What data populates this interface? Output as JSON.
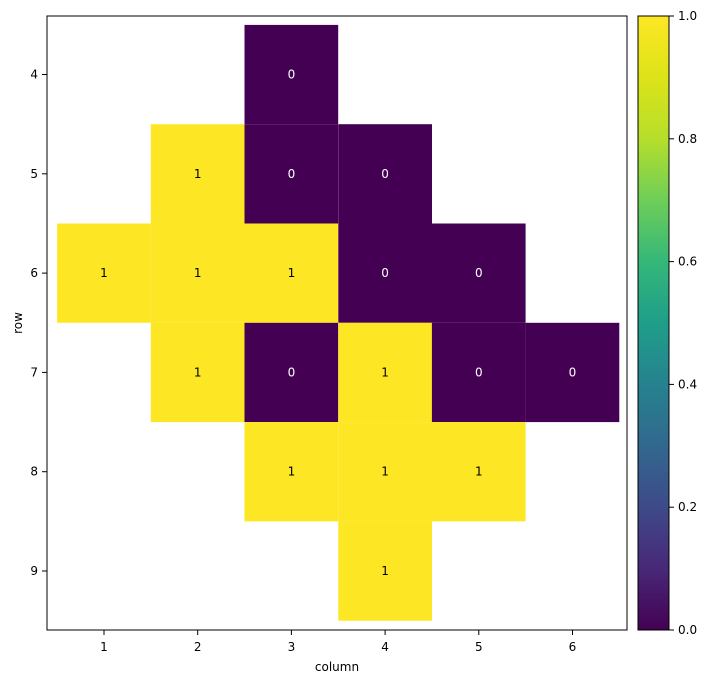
{
  "chart_data": {
    "type": "heatmap",
    "title": "",
    "xlabel": "column",
    "ylabel": "row",
    "columns": [
      1,
      2,
      3,
      4,
      5,
      6
    ],
    "rows": [
      4,
      5,
      6,
      7,
      8,
      9
    ],
    "x_tick_labels": [
      "1",
      "2",
      "3",
      "4",
      "5",
      "6"
    ],
    "y_tick_labels": [
      "4",
      "5",
      "6",
      "7",
      "8",
      "9"
    ],
    "cells": [
      {
        "row": 4,
        "col": 3,
        "value": 0
      },
      {
        "row": 5,
        "col": 2,
        "value": 1
      },
      {
        "row": 5,
        "col": 3,
        "value": 0
      },
      {
        "row": 5,
        "col": 4,
        "value": 0
      },
      {
        "row": 6,
        "col": 1,
        "value": 1
      },
      {
        "row": 6,
        "col": 2,
        "value": 1
      },
      {
        "row": 6,
        "col": 3,
        "value": 1
      },
      {
        "row": 6,
        "col": 4,
        "value": 0
      },
      {
        "row": 6,
        "col": 5,
        "value": 0
      },
      {
        "row": 7,
        "col": 2,
        "value": 1
      },
      {
        "row": 7,
        "col": 3,
        "value": 0
      },
      {
        "row": 7,
        "col": 4,
        "value": 1
      },
      {
        "row": 7,
        "col": 5,
        "value": 0
      },
      {
        "row": 7,
        "col": 6,
        "value": 0
      },
      {
        "row": 8,
        "col": 3,
        "value": 1
      },
      {
        "row": 8,
        "col": 4,
        "value": 1
      },
      {
        "row": 8,
        "col": 5,
        "value": 1
      },
      {
        "row": 9,
        "col": 4,
        "value": 1
      }
    ],
    "colorbar": {
      "colormap": "viridis",
      "range": [
        0.0,
        1.0
      ],
      "ticks": [
        0.0,
        0.2,
        0.4,
        0.6,
        0.8,
        1.0
      ],
      "tick_labels": [
        "0.0",
        "0.2",
        "0.4",
        "0.6",
        "0.8",
        "1.0"
      ]
    },
    "colors": {
      "low": "#440154",
      "high": "#fde725",
      "label_on_low": "#ffffff",
      "label_on_high": "#000000"
    },
    "grid": false
  }
}
